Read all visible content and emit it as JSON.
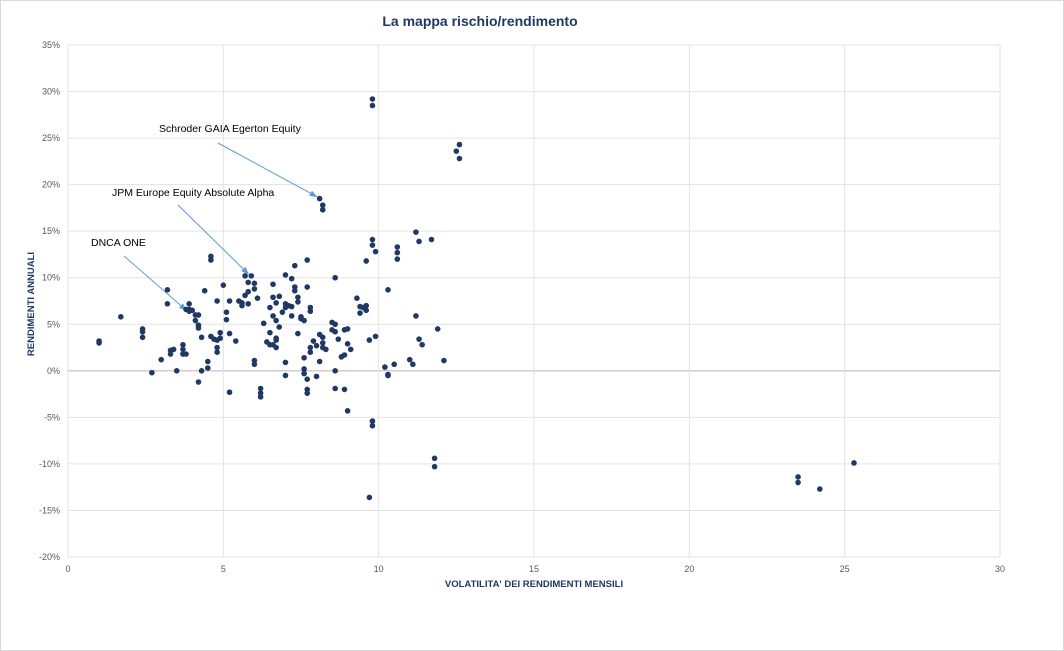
{
  "chart_data": {
    "type": "scatter",
    "title": "La mappa rischio/rendimento",
    "xlabel": "VOLATILITA' DEI RENDIMENTI MENSILI",
    "ylabel": "RENDIMENTI ANNUALI",
    "xlim": [
      0,
      30
    ],
    "ylim": [
      -20,
      35
    ],
    "x_ticks": [
      "0",
      "5",
      "10",
      "15",
      "20",
      "25",
      "30"
    ],
    "y_ticks": [
      "35%",
      "30%",
      "25%",
      "20%",
      "15%",
      "10%",
      "5%",
      "0%",
      "-5%",
      "-10%",
      "-15%",
      "-20%"
    ],
    "grid": "vertical and horizontal",
    "marker_color": "#1f3864",
    "annotations": [
      {
        "text": "Schroder GAIA Egerton Equity",
        "x": 8.1,
        "y": 18.5
      },
      {
        "text": "JPM Europe Equity Absolute Alpha",
        "x": 5.9,
        "y": 10.2
      },
      {
        "text": "DNCA ONE",
        "x": 3.9,
        "y": 6.3
      }
    ],
    "points": [
      [
        1.0,
        3.2
      ],
      [
        1.0,
        3.0
      ],
      [
        1.7,
        5.8
      ],
      [
        2.4,
        4.5
      ],
      [
        2.4,
        4.2
      ],
      [
        2.4,
        3.6
      ],
      [
        2.7,
        -0.2
      ],
      [
        3.0,
        1.2
      ],
      [
        3.2,
        8.7
      ],
      [
        3.2,
        7.2
      ],
      [
        3.3,
        2.2
      ],
      [
        3.3,
        1.8
      ],
      [
        3.4,
        2.3
      ],
      [
        3.5,
        0.0
      ],
      [
        3.7,
        2.8
      ],
      [
        3.7,
        2.3
      ],
      [
        3.7,
        1.8
      ],
      [
        3.8,
        1.8
      ],
      [
        3.8,
        6.6
      ],
      [
        3.9,
        7.2
      ],
      [
        3.9,
        6.6
      ],
      [
        3.9,
        6.4
      ],
      [
        4.0,
        6.5
      ],
      [
        4.1,
        6.0
      ],
      [
        4.1,
        5.4
      ],
      [
        4.2,
        4.6
      ],
      [
        4.2,
        4.9
      ],
      [
        4.2,
        6.0
      ],
      [
        4.3,
        3.6
      ],
      [
        4.2,
        -1.2
      ],
      [
        4.3,
        0.0
      ],
      [
        4.4,
        8.6
      ],
      [
        4.5,
        1.0
      ],
      [
        4.5,
        0.3
      ],
      [
        4.6,
        3.7
      ],
      [
        4.6,
        11.9
      ],
      [
        4.6,
        12.3
      ],
      [
        4.7,
        3.4
      ],
      [
        4.8,
        2.5
      ],
      [
        4.8,
        2.0
      ],
      [
        4.8,
        3.3
      ],
      [
        4.8,
        7.5
      ],
      [
        4.9,
        4.1
      ],
      [
        4.9,
        3.5
      ],
      [
        5.0,
        9.2
      ],
      [
        5.1,
        6.3
      ],
      [
        5.1,
        5.5
      ],
      [
        5.2,
        7.5
      ],
      [
        5.2,
        4.0
      ],
      [
        5.2,
        -2.3
      ],
      [
        5.4,
        3.2
      ],
      [
        5.5,
        7.5
      ],
      [
        5.6,
        7.0
      ],
      [
        5.6,
        7.3
      ],
      [
        5.7,
        8.1
      ],
      [
        5.7,
        10.2
      ],
      [
        5.8,
        9.5
      ],
      [
        5.8,
        7.2
      ],
      [
        5.8,
        8.5
      ],
      [
        5.9,
        10.2
      ],
      [
        6.0,
        8.8
      ],
      [
        6.0,
        9.4
      ],
      [
        6.0,
        0.7
      ],
      [
        6.0,
        1.1
      ],
      [
        6.1,
        7.8
      ],
      [
        6.2,
        -1.9
      ],
      [
        6.2,
        -2.4
      ],
      [
        6.2,
        -2.8
      ],
      [
        6.3,
        5.1
      ],
      [
        6.4,
        3.1
      ],
      [
        6.5,
        2.8
      ],
      [
        6.5,
        4.1
      ],
      [
        6.5,
        6.8
      ],
      [
        6.6,
        9.3
      ],
      [
        6.6,
        7.9
      ],
      [
        6.6,
        5.9
      ],
      [
        6.6,
        2.8
      ],
      [
        6.7,
        3.5
      ],
      [
        6.7,
        2.5
      ],
      [
        6.7,
        3.3
      ],
      [
        6.7,
        5.4
      ],
      [
        6.7,
        7.3
      ],
      [
        6.8,
        8.0
      ],
      [
        6.8,
        4.7
      ],
      [
        6.9,
        6.3
      ],
      [
        7.0,
        7.2
      ],
      [
        7.0,
        6.8
      ],
      [
        7.0,
        10.3
      ],
      [
        7.0,
        0.9
      ],
      [
        7.0,
        -0.5
      ],
      [
        7.1,
        7.0
      ],
      [
        7.2,
        6.9
      ],
      [
        7.2,
        9.9
      ],
      [
        7.2,
        5.9
      ],
      [
        7.3,
        9.0
      ],
      [
        7.3,
        8.6
      ],
      [
        7.3,
        11.3
      ],
      [
        7.4,
        7.9
      ],
      [
        7.4,
        7.4
      ],
      [
        7.4,
        4.0
      ],
      [
        7.5,
        5.8
      ],
      [
        7.5,
        5.6
      ],
      [
        7.6,
        5.4
      ],
      [
        7.6,
        1.4
      ],
      [
        7.6,
        0.2
      ],
      [
        7.6,
        -0.3
      ],
      [
        7.7,
        9.0
      ],
      [
        7.7,
        11.9
      ],
      [
        7.7,
        -2.0
      ],
      [
        7.7,
        -2.4
      ],
      [
        7.7,
        -0.9
      ],
      [
        7.8,
        2.5
      ],
      [
        7.8,
        6.8
      ],
      [
        7.8,
        6.4
      ],
      [
        7.8,
        2.0
      ],
      [
        7.9,
        3.2
      ],
      [
        8.0,
        -0.6
      ],
      [
        8.0,
        2.7
      ],
      [
        8.1,
        1.0
      ],
      [
        8.1,
        3.9
      ],
      [
        8.2,
        3.6
      ],
      [
        8.2,
        3.0
      ],
      [
        8.2,
        2.5
      ],
      [
        8.3,
        2.3
      ],
      [
        8.1,
        18.5
      ],
      [
        8.2,
        17.8
      ],
      [
        8.2,
        17.3
      ],
      [
        8.5,
        5.2
      ],
      [
        8.5,
        4.4
      ],
      [
        8.6,
        5.0
      ],
      [
        8.6,
        4.2
      ],
      [
        8.6,
        10.0
      ],
      [
        8.6,
        0.0
      ],
      [
        8.6,
        -1.9
      ],
      [
        8.7,
        3.4
      ],
      [
        8.8,
        1.5
      ],
      [
        8.9,
        4.4
      ],
      [
        8.9,
        1.7
      ],
      [
        8.9,
        -2.0
      ],
      [
        9.0,
        4.5
      ],
      [
        9.0,
        2.9
      ],
      [
        9.0,
        -4.3
      ],
      [
        9.1,
        2.3
      ],
      [
        9.3,
        7.8
      ],
      [
        9.4,
        6.9
      ],
      [
        9.4,
        6.2
      ],
      [
        9.5,
        6.8
      ],
      [
        9.6,
        6.5
      ],
      [
        9.6,
        11.8
      ],
      [
        9.6,
        7.0
      ],
      [
        9.7,
        3.3
      ],
      [
        9.7,
        -13.6
      ],
      [
        9.8,
        14.1
      ],
      [
        9.8,
        13.5
      ],
      [
        9.9,
        12.8
      ],
      [
        9.9,
        3.7
      ],
      [
        9.8,
        28.5
      ],
      [
        9.8,
        29.2
      ],
      [
        9.8,
        -5.4
      ],
      [
        9.8,
        -5.9
      ],
      [
        10.2,
        0.4
      ],
      [
        10.3,
        -0.4
      ],
      [
        10.3,
        -0.5
      ],
      [
        10.3,
        8.7
      ],
      [
        10.5,
        0.7
      ],
      [
        10.6,
        12.0
      ],
      [
        10.6,
        12.7
      ],
      [
        10.6,
        13.3
      ],
      [
        11.0,
        1.2
      ],
      [
        11.1,
        0.7
      ],
      [
        11.2,
        5.9
      ],
      [
        11.2,
        14.9
      ],
      [
        11.3,
        13.9
      ],
      [
        11.3,
        3.4
      ],
      [
        11.4,
        2.8
      ],
      [
        11.7,
        14.1
      ],
      [
        11.8,
        -9.4
      ],
      [
        11.8,
        -10.3
      ],
      [
        11.9,
        4.5
      ],
      [
        12.1,
        1.1
      ],
      [
        12.5,
        23.6
      ],
      [
        12.6,
        24.3
      ],
      [
        12.6,
        22.8
      ],
      [
        23.5,
        -11.4
      ],
      [
        23.5,
        -12.0
      ],
      [
        24.2,
        -12.7
      ],
      [
        25.3,
        -9.9
      ]
    ]
  }
}
